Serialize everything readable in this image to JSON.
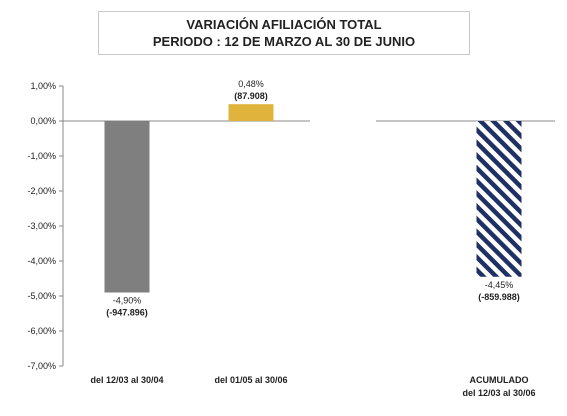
{
  "chart_data": {
    "type": "bar",
    "title": "VARIACIÓN AFILIACIÓN TOTAL",
    "subtitle": "PERIODO : 12 DE MARZO AL 30 DE JUNIO",
    "xlabel": "",
    "ylabel": "",
    "ylim": [
      -7,
      1
    ],
    "yticks": [
      1,
      0,
      -1,
      -2,
      -3,
      -4,
      -5,
      -6,
      -7
    ],
    "ytick_labels": [
      "1,00%",
      "0,00%",
      "-1,00%",
      "-2,00%",
      "-3,00%",
      "-4,00%",
      "-5,00%",
      "-6,00%",
      "-7,00%"
    ],
    "grid": false,
    "categories": [
      {
        "line1": "del 12/03 al 30/04",
        "line2": ""
      },
      {
        "line1": "del 01/05  al 30/06",
        "line2": ""
      },
      {
        "line1": "ACUMULADO",
        "line2": "del 12/03 al 30/06"
      }
    ],
    "values": [
      -4.9,
      0.48,
      -4.45
    ],
    "value_labels": [
      "-4,90%",
      "0,48%",
      "-4,45%"
    ],
    "count_labels": [
      "(-947.896)",
      "(87.908)",
      "(-859.988)"
    ],
    "colors": [
      "#7f7f7f",
      "#e0b43c",
      "#1f3064"
    ],
    "patterns": [
      "solid",
      "solid",
      "diagonal-stripes"
    ]
  }
}
